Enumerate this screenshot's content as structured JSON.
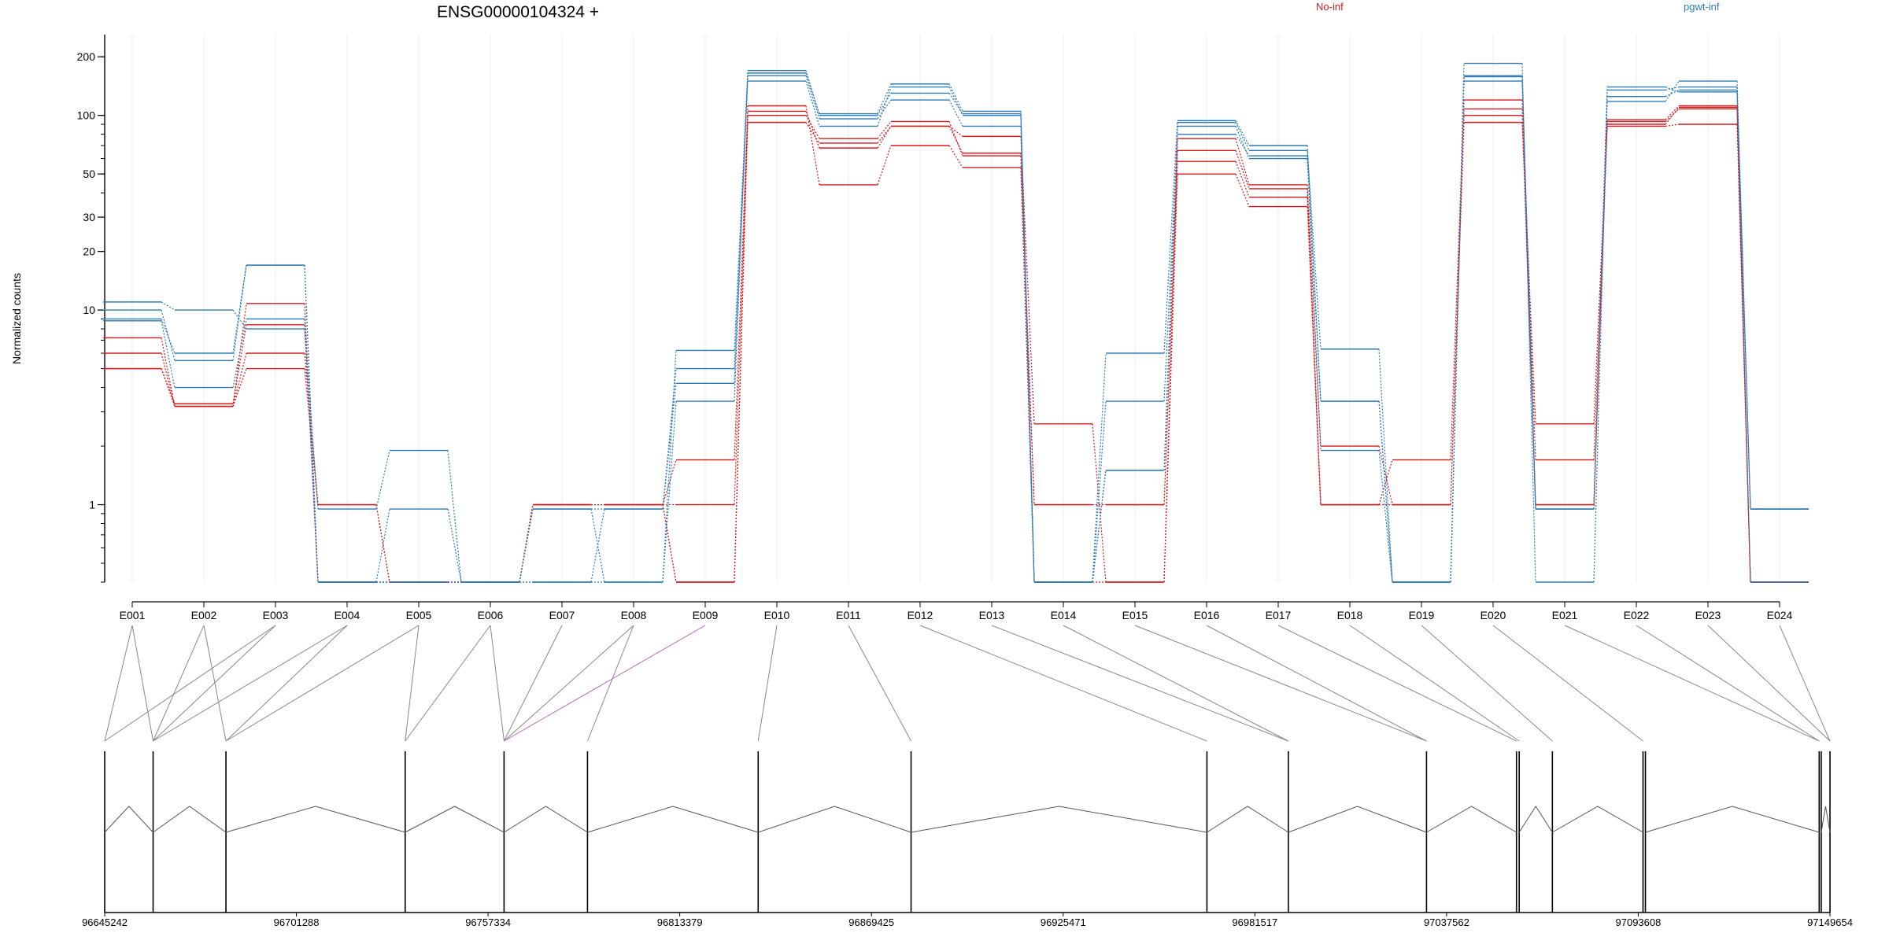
{
  "chart_data": {
    "type": "line",
    "title": "ENSG00000104324 +",
    "ylabel": "Normalized counts",
    "yscale": "log",
    "ylim": [
      0.4,
      260
    ],
    "yticks": [
      {
        "value": 200,
        "label": "200"
      },
      {
        "value": 100,
        "label": "100"
      },
      {
        "value": 50,
        "label": "50"
      },
      {
        "value": 30,
        "label": "30"
      },
      {
        "value": 20,
        "label": "20"
      },
      {
        "value": 10,
        "label": "10"
      },
      {
        "value": 1,
        "label": "1"
      }
    ],
    "floor_value": 0.4,
    "categories": [
      "E001",
      "E002",
      "E003",
      "E004",
      "E005",
      "E006",
      "E007",
      "E008",
      "E009",
      "E010",
      "E011",
      "E012",
      "E013",
      "E014",
      "E015",
      "E016",
      "E017",
      "E018",
      "E019",
      "E020",
      "E021",
      "E022",
      "E023",
      "E024"
    ],
    "legend": [
      {
        "label": "No-inf",
        "color": "#d7191c"
      },
      {
        "label": "pgwt-inf",
        "color": "#2c7bb6"
      }
    ],
    "series": [
      {
        "group": "No-inf",
        "color": "#d7191c",
        "values": [
          5.0,
          3.2,
          5.0,
          1.0,
          0.4,
          0.4,
          1.0,
          1.0,
          0.4,
          92,
          72,
          88,
          64,
          1.0,
          1.0,
          66,
          42,
          1.0,
          1.0,
          108,
          1.0,
          95,
          112,
          0.4
        ]
      },
      {
        "group": "No-inf",
        "color": "#d7191c",
        "values": [
          6.0,
          3.2,
          6.0,
          1.0,
          0.4,
          0.4,
          1.0,
          1.0,
          1.0,
          100,
          76,
          93,
          62,
          1.0,
          1.0,
          58,
          38,
          1.0,
          1.0,
          100,
          1.0,
          93,
          108,
          0.4
        ]
      },
      {
        "group": "No-inf",
        "color": "#d7191c",
        "values": [
          7.2,
          3.2,
          10.8,
          0.4,
          0.4,
          0.4,
          1.0,
          1.0,
          1.7,
          105,
          68,
          88,
          78,
          2.6,
          0.4,
          76,
          44,
          2.0,
          1.0,
          92,
          2.6,
          90,
          110,
          0.4
        ]
      },
      {
        "group": "No-inf",
        "color": "#d7191c",
        "values": [
          5.0,
          3.3,
          8.4,
          0.4,
          0.4,
          0.4,
          1.0,
          1.0,
          0.4,
          112,
          44,
          70,
          54,
          0.4,
          0.4,
          50,
          34,
          1.0,
          1.7,
          120,
          1.7,
          88,
          90,
          0.4
        ]
      },
      {
        "group": "pgwt-inf",
        "color": "#2c7bb6",
        "values": [
          10.0,
          5.5,
          17,
          0.4,
          0.4,
          0.4,
          0.95,
          0.4,
          3.4,
          170,
          100,
          130,
          102,
          0.4,
          1.5,
          88,
          60,
          1.9,
          0.4,
          185,
          0.4,
          125,
          135,
          0.95
        ]
      },
      {
        "group": "pgwt-inf",
        "color": "#2c7bb6",
        "values": [
          11,
          10,
          8,
          0.95,
          1.9,
          0.4,
          0.95,
          0.95,
          4.2,
          150,
          88,
          140,
          100,
          0.4,
          3.4,
          80,
          62,
          3.4,
          0.4,
          150,
          0.95,
          135,
          140,
          0.4
        ]
      },
      {
        "group": "pgwt-inf",
        "color": "#2c7bb6",
        "values": [
          9,
          6.0,
          17,
          0.4,
          0.95,
          0.4,
          0.4,
          0.95,
          5.0,
          160,
          96,
          120,
          88,
          0.4,
          1.5,
          92,
          66,
          6.3,
          0.4,
          160,
          0.95,
          140,
          132,
          0.95
        ]
      },
      {
        "group": "pgwt-inf",
        "color": "#2c7bb6",
        "values": [
          8.8,
          4.0,
          9.0,
          0.4,
          0.4,
          0.4,
          0.4,
          0.4,
          6.2,
          165,
          102,
          145,
          105,
          0.4,
          6.0,
          94,
          70,
          3.4,
          0.4,
          158,
          0.95,
          118,
          150,
          0.95
        ]
      }
    ]
  },
  "gene_model": {
    "coord_ticks": [
      "96645242",
      "96701288",
      "96757334",
      "96813379",
      "96869425",
      "96925471",
      "96981517",
      "97037562",
      "97093608",
      "97149654"
    ],
    "coord_min": 96645242,
    "coord_max": 97149654,
    "exon_bounds": [
      96645242,
      96659400,
      96680700,
      96733100,
      96762000,
      96786400,
      96836300,
      96881000,
      96967500,
      96991300,
      97031700,
      97058000,
      97058800,
      97068500,
      97095000,
      97095700,
      97146500,
      97147100,
      97149654
    ],
    "exon_map": [
      [
        96645242,
        96659400
      ],
      [
        96659400,
        96680700
      ],
      [
        96645242,
        96659400
      ],
      [
        96659400,
        96680700
      ],
      [
        96680700,
        96733100
      ],
      [
        96733100,
        96762000
      ],
      [
        96762000,
        96762000
      ],
      [
        96762000,
        96786400
      ],
      [
        96762000,
        96762000
      ],
      [
        96836300,
        96836300
      ],
      [
        96881000,
        96881000
      ],
      [
        96967500,
        96967500
      ],
      [
        96991300,
        96991300
      ],
      [
        96991300,
        96991300
      ],
      [
        97031700,
        97031700
      ],
      [
        97031700,
        97031700
      ],
      [
        97058000,
        97058000
      ],
      [
        97058800,
        97058800
      ],
      [
        97068500,
        97068500
      ],
      [
        97095000,
        97095000
      ],
      [
        97146500,
        97146500
      ],
      [
        97146500,
        97146500
      ],
      [
        97149654,
        97149654
      ],
      [
        97149654,
        97149654
      ]
    ],
    "highlight_exon": "E009",
    "highlight_color": "#b86bb0"
  }
}
